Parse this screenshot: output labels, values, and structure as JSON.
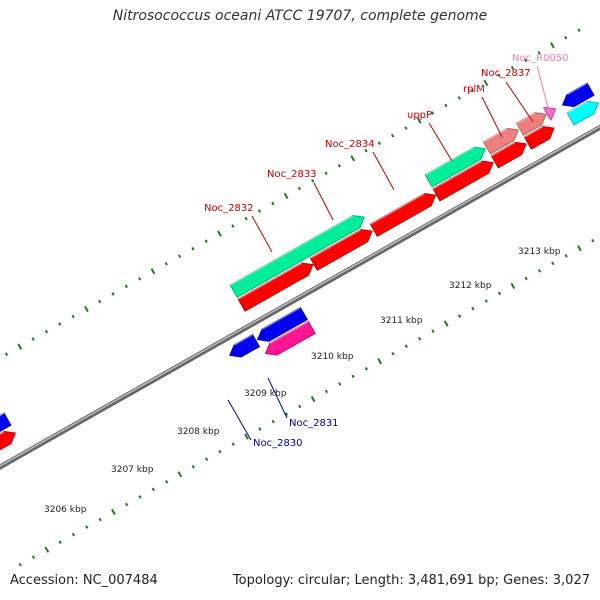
{
  "title": "Nitrosococcus oceani ATCC 19707, complete genome",
  "footer": {
    "accession": "Accession: NC_007484",
    "stats": "Topology: circular; Length: 3,481,691 bp; Genes: 3,027"
  },
  "colors": {
    "backbone": "#808080",
    "tick": "#1f7a1f",
    "label_forward": "#cc0000",
    "label_reverse": "#0000aa",
    "label_rna": "#ee82b4",
    "cds": "#ff0000",
    "gene": "#00ee99",
    "rrna": "#f08080",
    "rna_small": "#ff66cc",
    "reverse_cds": "#0000ee",
    "reverse_rna": "#ff1493",
    "cyan_feature": "#00ffff"
  },
  "scale": {
    "ticks": [
      {
        "label": "3206 kbp"
      },
      {
        "label": "3207 kbp"
      },
      {
        "label": "3208 kbp"
      },
      {
        "label": "3209 kbp"
      },
      {
        "label": "3210 kbp"
      },
      {
        "label": "3211 kbp"
      },
      {
        "label": "3212 kbp"
      },
      {
        "label": "3213 kbp"
      }
    ]
  },
  "gene_labels": [
    {
      "name": "Noc_2832",
      "strand": "forward"
    },
    {
      "name": "Noc_2833",
      "strand": "forward"
    },
    {
      "name": "Noc_2834",
      "strand": "forward"
    },
    {
      "name": "uppP",
      "strand": "forward"
    },
    {
      "name": "rplM",
      "strand": "forward"
    },
    {
      "name": "Noc_2837",
      "strand": "forward"
    },
    {
      "name": "Noc_R0050",
      "strand": "rna"
    },
    {
      "name": "Noc_2831",
      "strand": "reverse"
    },
    {
      "name": "Noc_2830",
      "strand": "reverse"
    }
  ]
}
